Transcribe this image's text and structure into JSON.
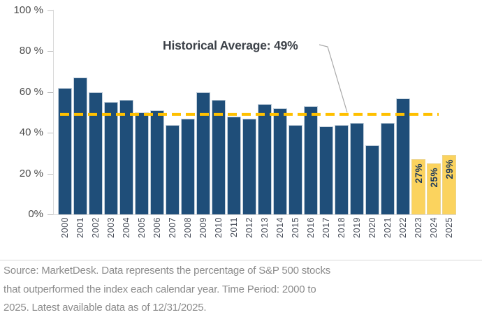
{
  "colors": {
    "bar_primary": "#1F4E79",
    "bar_highlight": "#FBD35E",
    "average_line": "#FFC000",
    "leader_line": "#a9a9a9"
  },
  "chart_data": {
    "type": "bar",
    "categories": [
      "2000",
      "2001",
      "2002",
      "2003",
      "2004",
      "2005",
      "2006",
      "2007",
      "2008",
      "2009",
      "2010",
      "2011",
      "2012",
      "2013",
      "2014",
      "2015",
      "2016",
      "2017",
      "2018",
      "2019",
      "2020",
      "2021",
      "2022",
      "2023",
      "2024",
      "2025"
    ],
    "values": [
      62,
      67,
      60,
      55,
      56,
      50,
      51,
      44,
      47,
      60,
      56,
      48,
      47,
      54,
      52,
      44,
      53,
      43,
      44,
      45,
      34,
      45,
      57,
      27,
      25,
      29
    ],
    "highlight_years": [
      "2023",
      "2024",
      "2025"
    ],
    "bar_labels": {
      "2023": "27%",
      "2024": "25%",
      "2025": "29%"
    },
    "average_line": {
      "value": 49,
      "label": "Historical Average: 49%"
    },
    "y_ticks": [
      {
        "value": 100,
        "label": "100 %"
      },
      {
        "value": 80,
        "label": "80 %"
      },
      {
        "value": 60,
        "label": "60 %"
      },
      {
        "value": 40,
        "label": "40 %"
      },
      {
        "value": 20,
        "label": "20 %"
      },
      {
        "value": 0,
        "label": "0%"
      }
    ],
    "ylim": [
      0,
      100
    ],
    "grid": false,
    "legend": false,
    "x_label_rotation": "vertical-bottom-to-top"
  },
  "footer": {
    "lines": [
      "Source: MarketDesk. Data represents the percentage of S&P 500 stocks",
      "that outperformed the index each calendar year. Time Period: 2000 to",
      "2025. Latest available data as of 12/31/2025."
    ]
  }
}
